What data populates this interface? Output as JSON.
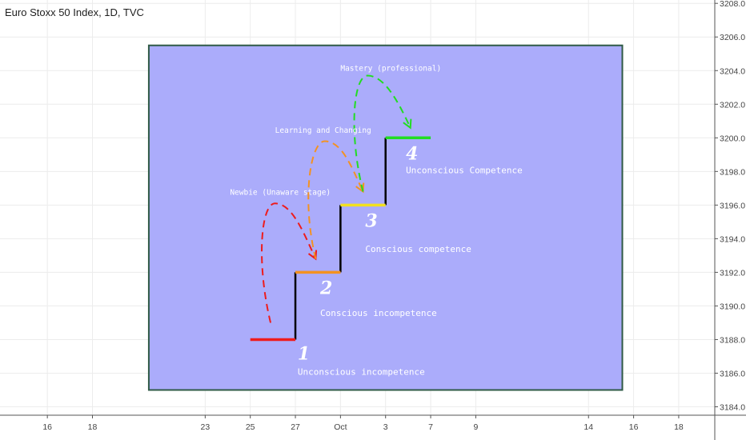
{
  "header": {
    "symbol_title": "Euro Stoxx 50 Index, 1D, TVC"
  },
  "chart_data": {
    "type": "line",
    "y_axis": {
      "ticks": [
        "3184.0",
        "3186.0",
        "3188.0",
        "3190.0",
        "3192.0",
        "3194.0",
        "3196.0",
        "3198.0",
        "3200.0",
        "3202.0",
        "3204.0",
        "3206.0",
        "3208.0"
      ],
      "ylim": [
        3183.5,
        3208.2
      ],
      "position": "right"
    },
    "x_axis": {
      "ticks": [
        {
          "label": "16",
          "day": -17
        },
        {
          "label": "18",
          "day": -15
        },
        {
          "label": "23",
          "day": -10
        },
        {
          "label": "25",
          "day": -8
        },
        {
          "label": "27",
          "day": -6
        },
        {
          "label": "Oct",
          "day": -4
        },
        {
          "label": "3",
          "day": -2
        },
        {
          "label": "7",
          "day": 0
        },
        {
          "label": "9",
          "day": 2
        },
        {
          "label": "14",
          "day": 7
        },
        {
          "label": "16",
          "day": 9
        },
        {
          "label": "18",
          "day": 11
        }
      ],
      "xlim": [
        -19.1,
        12.6
      ]
    },
    "grid": true,
    "drawing": {
      "box": {
        "x": [
          -12.5,
          8.5
        ],
        "y": [
          3185.0,
          3205.5
        ],
        "fill": "#abacfb",
        "stroke": "#2f5a46"
      },
      "steps": [
        {
          "x": [
            -8,
            -6
          ],
          "y": 3188.0,
          "color": "#ee1c1c"
        },
        {
          "x": [
            -6,
            -4
          ],
          "y": 3192.0,
          "color": "#f39222"
        },
        {
          "x": [
            -4,
            -2
          ],
          "y": 3196.0,
          "color": "#f2e020"
        },
        {
          "x": [
            -2,
            0
          ],
          "y": 3200.0,
          "color": "#22dd22"
        }
      ],
      "risers": [
        {
          "x": -6,
          "y": [
            3188.0,
            3192.0
          ]
        },
        {
          "x": -4,
          "y": [
            3192.0,
            3196.0
          ]
        },
        {
          "x": -2,
          "y": [
            3196.0,
            3200.0
          ]
        }
      ],
      "arrows": [
        {
          "color": "#ee1c1c",
          "start": [
            -7.1,
            3189.0
          ],
          "peak": [
            -6.9,
            3196.1
          ],
          "end": [
            -5.1,
            3192.8
          ]
        },
        {
          "color": "#f39222",
          "start": [
            -5.1,
            3192.8
          ],
          "peak": [
            -4.7,
            3199.8
          ],
          "end": [
            -3.0,
            3196.8
          ]
        },
        {
          "color": "#22dd22",
          "start": [
            -3.0,
            3196.8
          ],
          "peak": [
            -2.8,
            3203.7
          ],
          "end": [
            -0.9,
            3200.6
          ]
        }
      ],
      "stage_numbers": [
        {
          "text": "1",
          "x": -5.9,
          "y": 3186.8
        },
        {
          "text": "2",
          "x": -4.9,
          "y": 3190.7
        },
        {
          "text": "3",
          "x": -2.9,
          "y": 3194.7
        },
        {
          "text": "4",
          "x": -1.1,
          "y": 3198.7
        }
      ],
      "stage_labels": [
        {
          "text": "Unconscious incompetence",
          "x": -5.9,
          "y": 3185.9
        },
        {
          "text": "Conscious incompetence",
          "x": -4.9,
          "y": 3189.4
        },
        {
          "text": "Conscious competence",
          "x": -2.9,
          "y": 3193.2
        },
        {
          "text": "Unconscious Competence",
          "x": -1.1,
          "y": 3197.9
        }
      ],
      "annotations": [
        {
          "text": "Newbie (Unaware stage)",
          "x": -8.9,
          "y": 3196.6
        },
        {
          "text": "Learning and Changing",
          "x": -6.9,
          "y": 3200.3
        },
        {
          "text": "Mastery (professional)",
          "x": -4.0,
          "y": 3204.0
        }
      ]
    }
  }
}
